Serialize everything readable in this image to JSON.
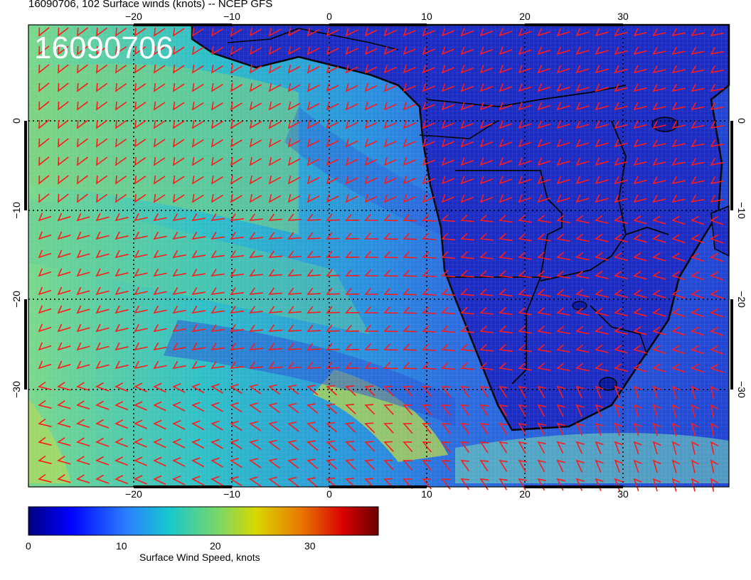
{
  "title": "16090706, 102 Surface winds (knots) -- NCEP GFS",
  "stamp": "16090706",
  "colors": {
    "ocean_calm": "#1f3fd0",
    "ocean_mid": "#15b8c8",
    "ocean_strong": "#8fd86a",
    "land": "#1a2fc8",
    "barbs": "#ff1a1a",
    "coast": "#000000"
  },
  "axes": {
    "lon_ticks": [
      "−20",
      "−10",
      "0",
      "10",
      "20",
      "30"
    ],
    "lat_ticks": [
      "0",
      "−10",
      "−20",
      "−30"
    ],
    "lat_ticks_right": [
      "0",
      "−10",
      "−20",
      "−30"
    ]
  },
  "colorbar": {
    "label": "Surface Wind Speed, knots",
    "ticks": [
      "0",
      "10",
      "20",
      "30"
    ],
    "range": [
      0,
      37
    ]
  }
}
